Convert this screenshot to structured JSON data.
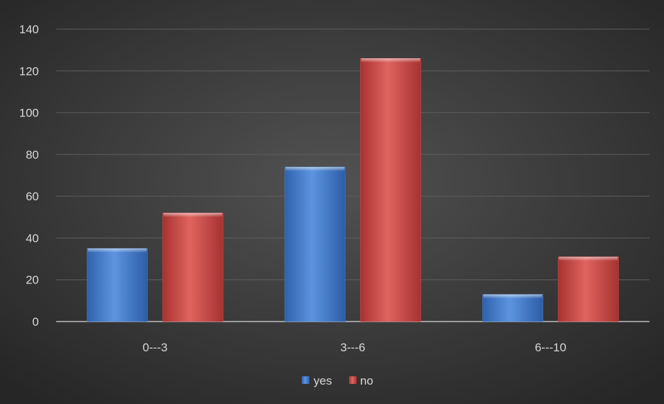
{
  "chart_data": {
    "type": "bar",
    "categories": [
      "0---3",
      "3---6",
      "6---10"
    ],
    "series": [
      {
        "name": "yes",
        "values": [
          35,
          74,
          13
        ],
        "color": "#4a86d6"
      },
      {
        "name": "no",
        "values": [
          52,
          126,
          31
        ],
        "color": "#d9534f"
      }
    ],
    "ylim": [
      0,
      140
    ],
    "yticks": [
      0,
      20,
      40,
      60,
      80,
      100,
      120,
      140
    ],
    "grid": true,
    "legend_position": "bottom"
  }
}
